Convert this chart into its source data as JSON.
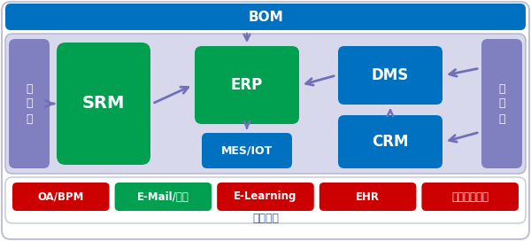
{
  "bom_bar_color": "#0070c0",
  "bom_text": "BOM",
  "mid_bg_color": "#d8d8ec",
  "supplier_text": "供\n应\n商",
  "dealer_text": "经\n销\n商",
  "supplier_color": "#8080c0",
  "dealer_color": "#8080c0",
  "srm_color": "#00a050",
  "srm_text": "SRM",
  "erp_color": "#00a050",
  "erp_text": "ERP",
  "mesiot_color": "#0070c0",
  "mesiot_text": "MES/IOT",
  "dms_color": "#0070c0",
  "dms_text": "DMS",
  "crm_color": "#0070c0",
  "crm_text": "CRM",
  "arrow_color": "#7070b8",
  "bottom_label": "基础服务",
  "bottom_label_color": "#4060a0",
  "bottom_boxes": [
    {
      "text": "OA/BPM",
      "color": "#cc0000"
    },
    {
      "text": "E-Mail/钉钉",
      "color": "#00a050"
    },
    {
      "text": "E-Learning",
      "color": "#cc0000"
    },
    {
      "text": "EHR",
      "color": "#cc0000"
    },
    {
      "text": "绩效管理系统",
      "color": "#cc0000"
    }
  ],
  "figsize": [
    6.0,
    2.72
  ],
  "dpi": 100
}
